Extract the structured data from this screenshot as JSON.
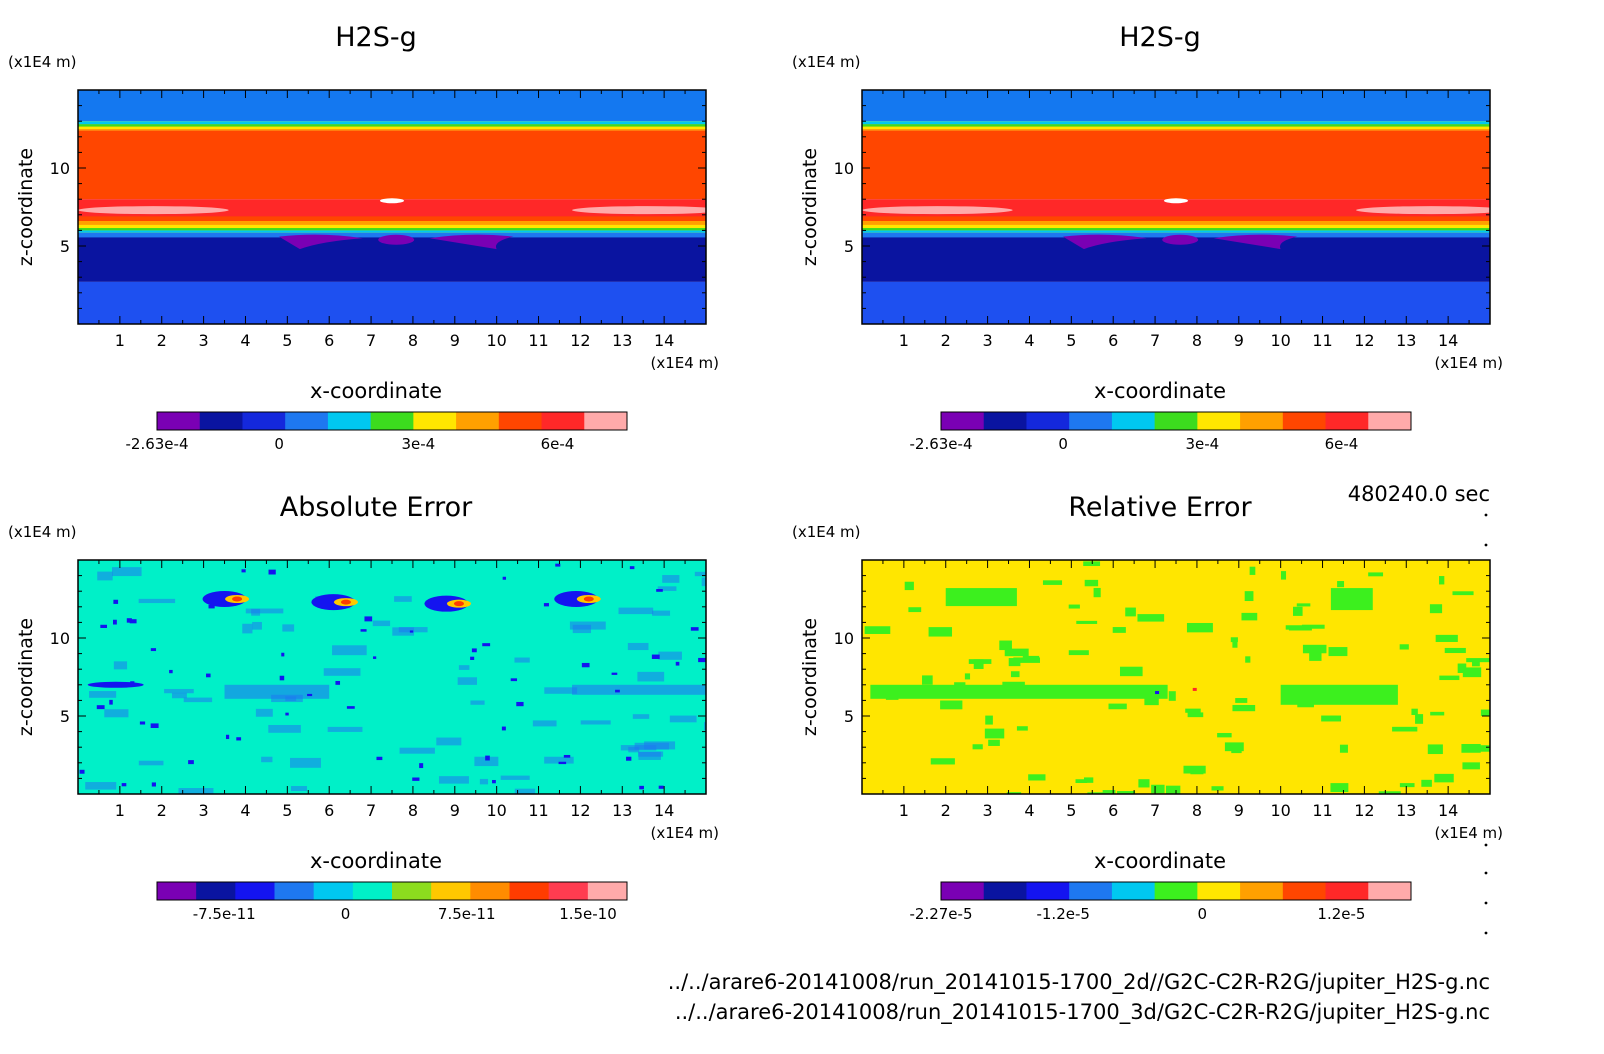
{
  "figure": {
    "time_label": "480240.0 sec",
    "file_paths": [
      "../../arare6-20141008/run_20141015-1700_2d//G2C-C2R-R2G/jupiter_H2S-g.nc",
      "../../arare6-20141008/run_20141015-1700_3d/G2C-C2R-R2G/jupiter_H2S-g.nc"
    ]
  },
  "chart_data": [
    {
      "type": "heatmap",
      "title": "H2S-g",
      "xlabel": "x-coordinate",
      "ylabel": "z-coordinate",
      "x_unit": "(x1E4 m)",
      "y_unit": "(x1E4 m)",
      "x_ticks": [
        "1",
        "2",
        "3",
        "4",
        "5",
        "6",
        "7",
        "8",
        "9",
        "10",
        "11",
        "12",
        "13",
        "14"
      ],
      "y_ticks": [
        "5",
        "10"
      ],
      "xlim": [
        0,
        15
      ],
      "ylim": [
        0,
        15
      ],
      "levels": [
        -0.000263,
        -0.0002,
        -0.0001,
        0,
        0.0001,
        0.0002,
        0.0003,
        0.0004,
        0.0005,
        0.0006,
        0.0007,
        0.0008
      ],
      "colorbar": {
        "colors": [
          "#7a00b4",
          "#0a14a0",
          "#1428dc",
          "#1e78f0",
          "#00c8f0",
          "#3cdc1e",
          "#ffe600",
          "#ffa000",
          "#ff4600",
          "#ff2828",
          "#ffaaaa"
        ],
        "tick_labels": [
          "-2.63e-4",
          "0",
          "3e-4",
          "6e-4"
        ]
      },
      "bands_z_top_to_bottom": [
        {
          "z_from": 15.0,
          "z_to": 13.0,
          "color": "#1478f0"
        },
        {
          "z_from": 13.0,
          "z_to": 12.4,
          "color": "#ffa000"
        },
        {
          "z_from": 12.4,
          "z_to": 8.0,
          "color": "#ff4600"
        },
        {
          "z_from": 8.0,
          "z_to": 6.6,
          "color": "#ff2828"
        },
        {
          "z_from": 6.6,
          "z_to": 5.8,
          "color": "#ffe600"
        },
        {
          "z_from": 5.8,
          "z_to": 2.7,
          "color": "#0a14a0"
        },
        {
          "z_from": 2.7,
          "z_to": 0.0,
          "color": "#1e50f0"
        }
      ]
    },
    {
      "type": "heatmap",
      "title": "H2S-g",
      "xlabel": "x-coordinate",
      "ylabel": "z-coordinate",
      "x_unit": "(x1E4 m)",
      "y_unit": "(x1E4 m)",
      "x_ticks": [
        "1",
        "2",
        "3",
        "4",
        "5",
        "6",
        "7",
        "8",
        "9",
        "10",
        "11",
        "12",
        "13",
        "14"
      ],
      "y_ticks": [
        "5",
        "10"
      ],
      "xlim": [
        0,
        15
      ],
      "ylim": [
        0,
        15
      ],
      "colorbar": {
        "colors": [
          "#7a00b4",
          "#0a14a0",
          "#1428dc",
          "#1e78f0",
          "#00c8f0",
          "#3cdc1e",
          "#ffe600",
          "#ffa000",
          "#ff4600",
          "#ff2828",
          "#ffaaaa"
        ],
        "tick_labels": [
          "-2.63e-4",
          "0",
          "3e-4",
          "6e-4"
        ]
      },
      "bands_z_top_to_bottom": [
        {
          "z_from": 15.0,
          "z_to": 13.0,
          "color": "#1478f0"
        },
        {
          "z_from": 13.0,
          "z_to": 12.4,
          "color": "#ffa000"
        },
        {
          "z_from": 12.4,
          "z_to": 8.0,
          "color": "#ff4600"
        },
        {
          "z_from": 8.0,
          "z_to": 6.6,
          "color": "#ff2828"
        },
        {
          "z_from": 6.6,
          "z_to": 5.8,
          "color": "#ffe600"
        },
        {
          "z_from": 5.8,
          "z_to": 2.7,
          "color": "#0a14a0"
        },
        {
          "z_from": 2.7,
          "z_to": 0.0,
          "color": "#1e50f0"
        }
      ]
    },
    {
      "type": "heatmap",
      "title": "Absolute Error",
      "xlabel": "x-coordinate",
      "ylabel": "z-coordinate",
      "x_unit": "(x1E4 m)",
      "y_unit": "(x1E4 m)",
      "x_ticks": [
        "1",
        "2",
        "3",
        "4",
        "5",
        "6",
        "7",
        "8",
        "9",
        "10",
        "11",
        "12",
        "13",
        "14"
      ],
      "y_ticks": [
        "5",
        "10"
      ],
      "xlim": [
        0,
        15
      ],
      "ylim": [
        0,
        15
      ],
      "background_color": "#00f0c8",
      "colorbar": {
        "colors": [
          "#7a00b4",
          "#0a14a0",
          "#1414f0",
          "#1e78f0",
          "#00c8f0",
          "#00f0c8",
          "#8cdc1e",
          "#ffc800",
          "#ff8c00",
          "#ff3c00",
          "#ff3c50",
          "#ffaaaa"
        ],
        "tick_labels": [
          "-7.5e-11",
          "0",
          "7.5e-11",
          "1.5e-10"
        ]
      }
    },
    {
      "type": "heatmap",
      "title": "Relative Error",
      "xlabel": "x-coordinate",
      "ylabel": "z-coordinate",
      "x_unit": "(x1E4 m)",
      "y_unit": "(x1E4 m)",
      "x_ticks": [
        "1",
        "2",
        "3",
        "4",
        "5",
        "6",
        "7",
        "8",
        "9",
        "10",
        "11",
        "12",
        "13",
        "14"
      ],
      "y_ticks": [
        "5",
        "10"
      ],
      "xlim": [
        0,
        15
      ],
      "ylim": [
        0,
        15
      ],
      "background_color": "#ffe600",
      "colorbar": {
        "colors": [
          "#7a00b4",
          "#0a14a0",
          "#1414f0",
          "#1e78f0",
          "#00c8f0",
          "#3cf01e",
          "#ffe600",
          "#ffa000",
          "#ff4600",
          "#ff2828",
          "#ffaaaa"
        ],
        "tick_labels": [
          "-2.27e-5",
          "-1.2e-5",
          "0",
          "1.2e-5"
        ]
      }
    }
  ]
}
